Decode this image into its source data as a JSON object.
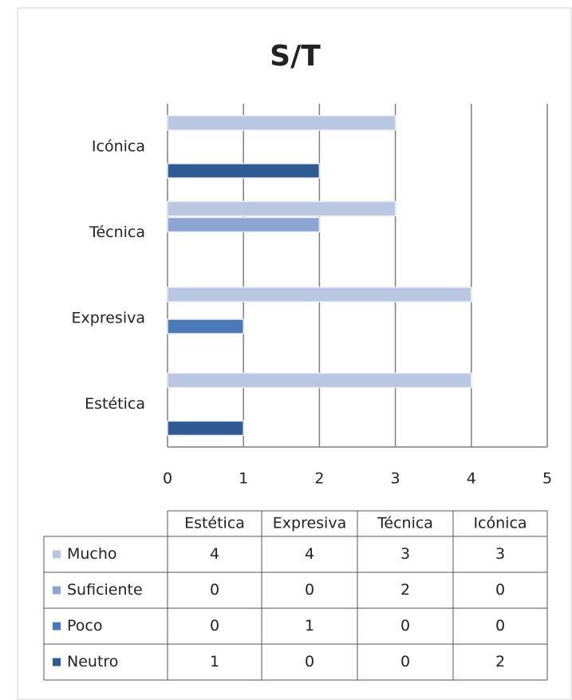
{
  "chart_data": {
    "type": "hbar",
    "title": "S/T",
    "categories": [
      "Estética",
      "Expresiva",
      "Técnica",
      "Icónica"
    ],
    "series": [
      {
        "name": "Mucho",
        "color": "#b9c7e2",
        "values": [
          4,
          4,
          3,
          3
        ]
      },
      {
        "name": "Suficiente",
        "color": "#8ca5d3",
        "values": [
          0,
          0,
          2,
          0
        ]
      },
      {
        "name": "Poco",
        "color": "#4a79ba",
        "values": [
          0,
          1,
          0,
          0
        ]
      },
      {
        "name": "Neutro",
        "color": "#2f5b95",
        "values": [
          1,
          0,
          0,
          2
        ]
      }
    ],
    "xlim": [
      0,
      5
    ],
    "xticks": [
      0,
      1,
      2,
      3,
      4,
      5
    ],
    "grid": true
  }
}
